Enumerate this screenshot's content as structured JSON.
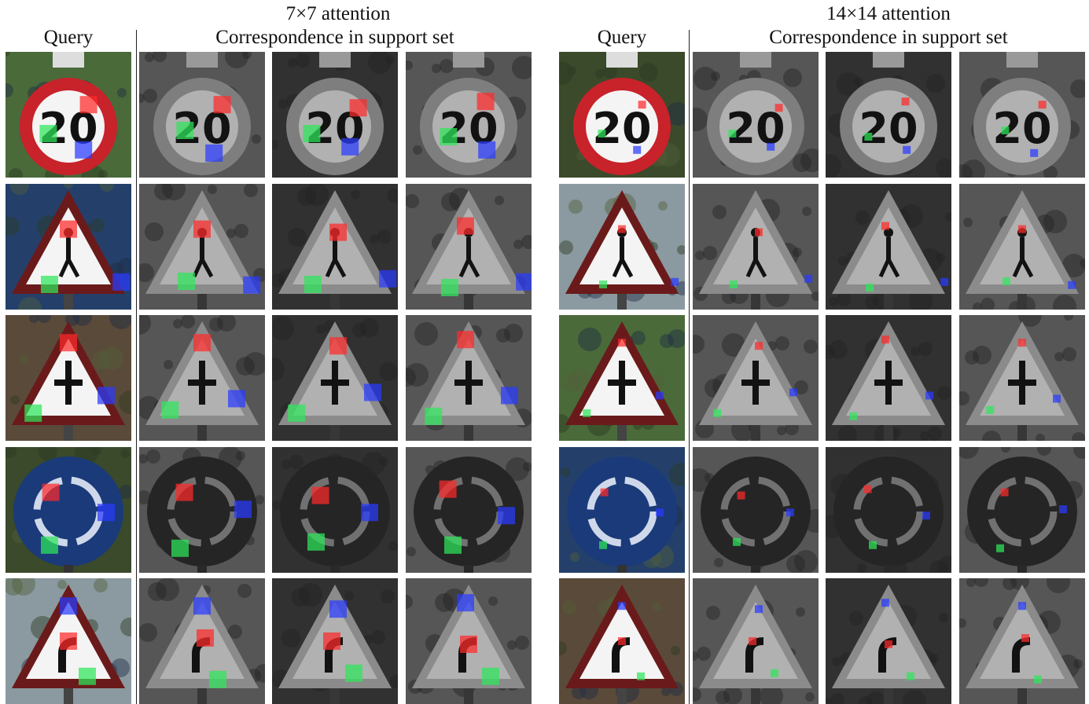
{
  "figure": {
    "panels": [
      {
        "id": "7x7",
        "title": "7×7 attention",
        "query_label": "Query",
        "support_label": "Correspondence in support set",
        "patch_scale": "large"
      },
      {
        "id": "14x14",
        "title": "14×14 attention",
        "query_label": "Query",
        "support_label": "Correspondence in support set",
        "patch_scale": "small"
      }
    ],
    "rows": [
      {
        "sign": "speed-limit-20",
        "query_colors": "color",
        "support_colors": "grayscale"
      },
      {
        "sign": "pedestrian-warning",
        "query_colors": "color",
        "support_colors": "grayscale"
      },
      {
        "sign": "crossroads-warning",
        "query_colors": "color",
        "support_colors": "grayscale"
      },
      {
        "sign": "roundabout",
        "query_colors": "color",
        "support_colors": "grayscale"
      },
      {
        "sign": "curve-warning",
        "query_colors": "color",
        "support_colors": "grayscale"
      }
    ],
    "support_images_per_row": 3,
    "patch_colors": {
      "red": "#ff2a2a",
      "green": "#2ee85a",
      "blue": "#2a3aff"
    }
  }
}
